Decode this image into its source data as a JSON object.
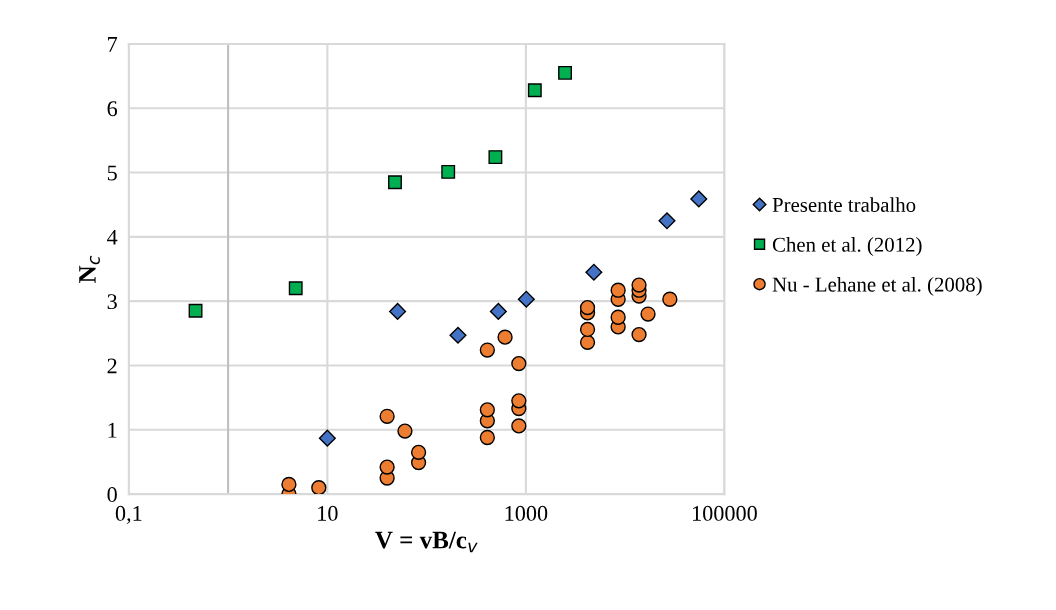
{
  "chart_data": {
    "type": "scatter",
    "xlabel": "V = vB/c$_{v}$",
    "ylabel": "N$_{c}$",
    "log": "x",
    "xlim": [
      0.1,
      100000
    ],
    "xticks": [
      {
        "value": 0.1,
        "label": "0,1"
      },
      10,
      1000,
      100000
    ],
    "ylim": [
      0,
      7
    ],
    "yticks": [
      0,
      1,
      2,
      3,
      4,
      5,
      6,
      7
    ],
    "grid": true,
    "legend": "right",
    "ref_lines": [
      {
        "axis": "x",
        "value": 1,
        "label": null,
        "color": "#bfbfbf"
      }
    ],
    "series": [
      {
        "name": "Presente trabalho",
        "color": "#4472c4",
        "marker": "diamond",
        "x": [
          10,
          51,
          207,
          528,
          1010,
          4840,
          26400,
          55200
        ],
        "values": [
          0.87,
          2.84,
          2.47,
          2.84,
          3.03,
          3.45,
          4.25,
          4.59
        ]
      },
      {
        "name": "Chen et al. (2012)",
        "color": "#00b050",
        "marker": "square",
        "x": [
          0.47,
          4.8,
          48,
          165,
          493,
          1230,
          2480
        ],
        "values": [
          2.85,
          3.2,
          4.85,
          5.01,
          5.24,
          6.28,
          6.55
        ]
      },
      {
        "name": "Nu - Lehane et al. (2008)",
        "color": "#ed7d31",
        "marker": "circle",
        "x": [
          4.1,
          4.1,
          8.2,
          40,
          60.5,
          83,
          83,
          40,
          40,
          409,
          617,
          849,
          409,
          409,
          409,
          849,
          849,
          849,
          4180,
          4180,
          4180,
          4180,
          8500,
          8500,
          8500,
          8500,
          13800,
          13800,
          13800,
          13800,
          17000,
          28200
        ],
        "values": [
          0.0,
          0.15,
          0.1,
          1.21,
          0.98,
          0.49,
          0.65,
          0.25,
          0.42,
          2.24,
          2.44,
          2.03,
          0.88,
          1.14,
          1.31,
          1.06,
          1.33,
          1.45,
          2.36,
          2.56,
          2.82,
          2.9,
          2.6,
          2.75,
          3.03,
          3.17,
          2.48,
          3.08,
          3.17,
          3.25,
          2.8,
          3.03
        ]
      }
    ]
  }
}
